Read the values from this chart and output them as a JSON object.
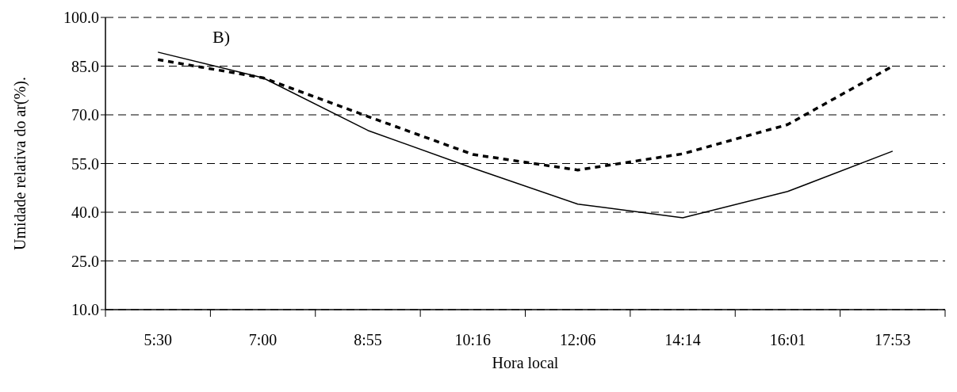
{
  "chart_data": {
    "type": "line",
    "xlabel": "Hora local",
    "ylabel": "Umidade relativa do ar(%).",
    "annotations": [
      "B)"
    ],
    "categories": [
      "5:30",
      "7:00",
      "8:55",
      "10:16",
      "12:06",
      "14:14",
      "16:01",
      "17:53"
    ],
    "series": [
      {
        "color": "#000000",
        "line_style": "solid",
        "values": [
          89.3,
          81.4,
          65.2,
          53.6,
          42.5,
          38.3,
          46.4,
          58.8
        ]
      },
      {
        "color": "#000000",
        "line_style": "dotted",
        "values": [
          87.0,
          81.4,
          69.5,
          57.8,
          53.0,
          58.0,
          67.0,
          85.0
        ]
      }
    ],
    "ylim": [
      10,
      100
    ],
    "yticks": [
      {
        "value": 10,
        "label": "10.0"
      },
      {
        "value": 25,
        "label": "25.0"
      },
      {
        "value": 40,
        "label": "40.0"
      },
      {
        "value": 55,
        "label": "55.0"
      },
      {
        "value": 70,
        "label": "70.0"
      },
      {
        "value": 85,
        "label": "85.0"
      },
      {
        "value": 100,
        "label": "100.0"
      }
    ],
    "grid": "y",
    "marker": "none"
  }
}
